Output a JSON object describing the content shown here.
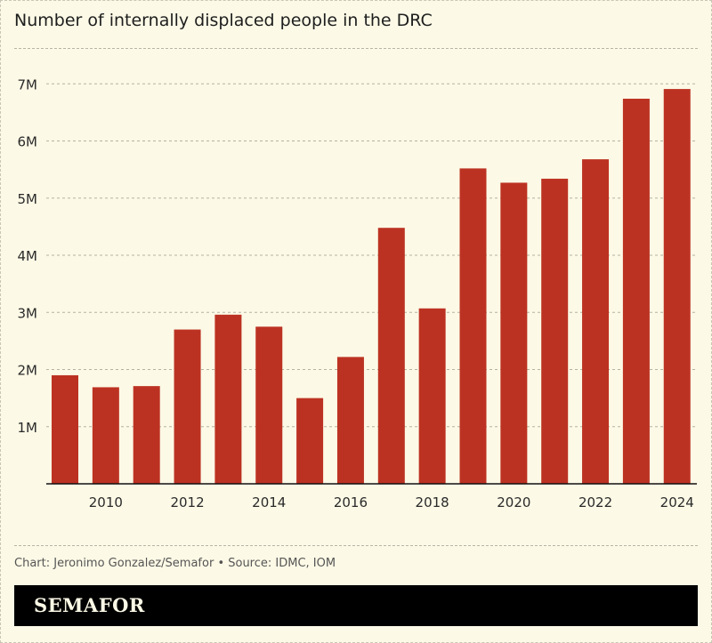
{
  "chart_data": {
    "type": "bar",
    "title": "Number of internally displaced people in the DRC",
    "xlabel": "",
    "ylabel": "",
    "categories": [
      2009,
      2010,
      2011,
      2012,
      2013,
      2014,
      2015,
      2016,
      2017,
      2018,
      2019,
      2020,
      2021,
      2022,
      2023,
      2024
    ],
    "values": [
      1.9,
      1.69,
      1.71,
      2.7,
      2.96,
      2.75,
      1.5,
      2.22,
      4.48,
      3.07,
      5.52,
      5.27,
      5.34,
      5.68,
      6.74,
      6.91
    ],
    "value_unit": "millions",
    "ylim": [
      0,
      7
    ],
    "y_ticks": [
      1,
      2,
      3,
      4,
      5,
      6,
      7
    ],
    "y_tick_labels": [
      "1M",
      "2M",
      "3M",
      "4M",
      "5M",
      "6M",
      "7M"
    ],
    "x_tick_labels": [
      "2010",
      "2012",
      "2014",
      "2016",
      "2018",
      "2020",
      "2022",
      "2024"
    ],
    "grid": true,
    "bar_color": "#bc3222"
  },
  "footer": {
    "credit": "Chart: Jeronimo Gonzalez/Semafor • Source: IDMC, IOM",
    "brand": "SEMAFOR"
  }
}
